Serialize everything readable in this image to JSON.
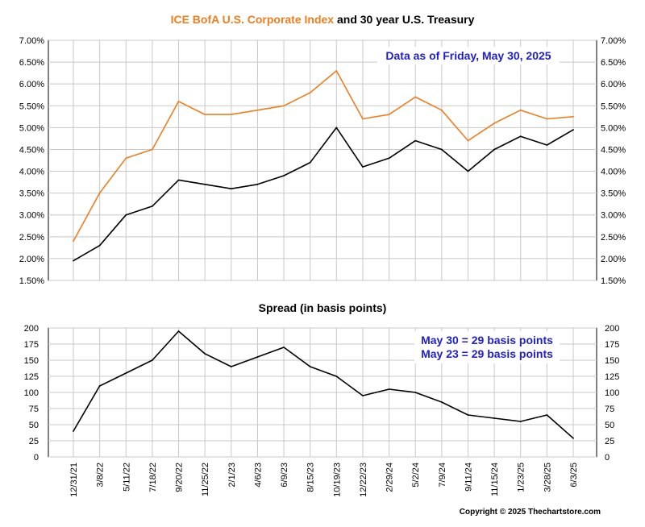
{
  "chart_data": [
    {
      "type": "line",
      "title_part1": "ICE BofA U.S. Corporate Index",
      "title_part2": " and 30 year U.S. Treasury",
      "annotation": "Data as of Friday, May 30, 2025",
      "ylim": [
        1.5,
        7.0
      ],
      "y_ticks": [
        "1.50%",
        "2.00%",
        "2.50%",
        "3.00%",
        "3.50%",
        "4.00%",
        "4.50%",
        "5.00%",
        "5.50%",
        "6.00%",
        "6.50%",
        "7.00%"
      ],
      "grid": true,
      "series": [
        {
          "color": "#f07d1e",
          "x": [
            "12/31/21",
            "3/8/22",
            "5/11/22",
            "7/18/22",
            "9/20/22",
            "11/25/22",
            "2/1/23",
            "4/6/23",
            "6/9/23",
            "8/15/23",
            "10/19/23",
            "12/22/23",
            "2/29/24",
            "5/2/24",
            "7/9/24",
            "9/11/24",
            "11/15/24",
            "1/23/25",
            "3/28/25",
            "5/30/25"
          ],
          "values": [
            2.4,
            3.5,
            4.3,
            4.5,
            5.6,
            5.3,
            5.3,
            5.4,
            5.5,
            5.8,
            6.3,
            5.2,
            5.3,
            5.7,
            5.4,
            4.7,
            5.1,
            5.4,
            5.2,
            5.25
          ]
        },
        {
          "color": "#000000",
          "x": [
            "12/31/21",
            "3/8/22",
            "5/11/22",
            "7/18/22",
            "9/20/22",
            "11/25/22",
            "2/1/23",
            "4/6/23",
            "6/9/23",
            "8/15/23",
            "10/19/23",
            "12/22/23",
            "2/29/24",
            "5/2/24",
            "7/9/24",
            "9/11/24",
            "11/15/24",
            "1/23/25",
            "3/28/25",
            "5/30/25"
          ],
          "values": [
            1.95,
            2.3,
            3.0,
            3.2,
            3.8,
            3.7,
            3.6,
            3.7,
            3.9,
            4.2,
            5.0,
            4.1,
            4.3,
            4.7,
            4.5,
            4.0,
            4.5,
            4.8,
            4.6,
            4.95
          ]
        }
      ]
    },
    {
      "type": "line",
      "title": "Spread (in basis points)",
      "annotations": [
        "May 30 = 29 basis points",
        "May 23 = 29 basis points"
      ],
      "ylim": [
        0,
        200
      ],
      "y_ticks": [
        "0",
        "25",
        "50",
        "75",
        "100",
        "125",
        "150",
        "175",
        "200"
      ],
      "grid": true,
      "categories": [
        "12/31/21",
        "3/8/22",
        "5/11/22",
        "7/18/22",
        "9/20/22",
        "11/25/22",
        "2/1/23",
        "4/6/23",
        "6/9/23",
        "8/15/23",
        "10/19/23",
        "12/22/23",
        "2/29/24",
        "5/2/24",
        "7/9/24",
        "9/11/24",
        "11/15/24",
        "1/23/25",
        "3/28/25",
        "6/3/25"
      ],
      "series": [
        {
          "color": "#000000",
          "x": [
            "12/31/21",
            "3/8/22",
            "5/11/22",
            "7/18/22",
            "9/20/22",
            "11/25/22",
            "2/1/23",
            "4/6/23",
            "6/9/23",
            "8/15/23",
            "10/19/23",
            "12/22/23",
            "2/29/24",
            "5/2/24",
            "7/9/24",
            "9/11/24",
            "11/15/24",
            "1/23/25",
            "3/28/25",
            "5/30/25"
          ],
          "values": [
            40,
            110,
            130,
            150,
            195,
            160,
            140,
            155,
            170,
            140,
            125,
            95,
            105,
            100,
            85,
            65,
            60,
            55,
            65,
            29
          ]
        }
      ]
    }
  ],
  "copyright": "Copyright © 2025 Thechartstore.com"
}
